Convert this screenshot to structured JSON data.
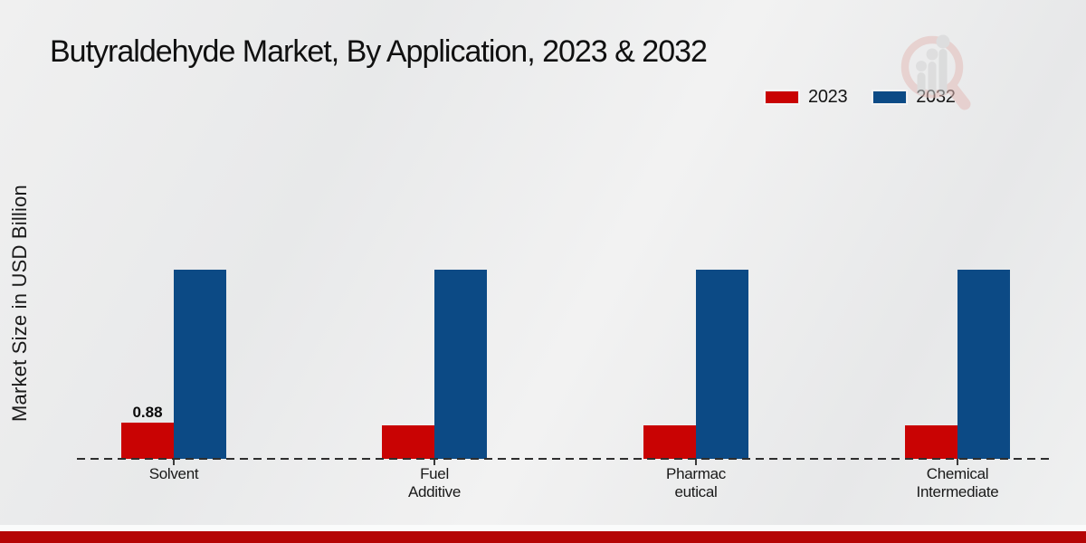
{
  "header": {
    "title": "Butyraldehyde Market, By Application, 2023 & 2032"
  },
  "axes": {
    "y_label": "Market Size in USD Billion"
  },
  "legend": {
    "items": [
      {
        "label": "2023",
        "color": "#c90303"
      },
      {
        "label": "2032",
        "color": "#0c4a85"
      }
    ]
  },
  "icons": {
    "watermark": "magnifier-growth-chart-icon"
  },
  "colors": {
    "series_2023": "#c90303",
    "series_2032": "#0c4a85",
    "axis_dash": "#2e2e2e",
    "footer_bar": "#b50505"
  },
  "chart_data": {
    "type": "bar",
    "title": "Butyraldehyde Market, By Application, 2023 & 2032",
    "xlabel": "",
    "ylabel": "Market Size in USD Billion",
    "categories": [
      "Solvent",
      "Fuel Additive",
      "Pharmaceutical",
      "Chemical Intermediate"
    ],
    "category_label_lines": [
      [
        "Solvent"
      ],
      [
        "Fuel",
        "Additive"
      ],
      [
        "Pharmac",
        "eutical"
      ],
      [
        "Chemical",
        "Intermediate"
      ]
    ],
    "series": [
      {
        "name": "2023",
        "color": "#c90303",
        "values": [
          0.88,
          0.81,
          0.81,
          0.81
        ]
      },
      {
        "name": "2032",
        "color": "#0c4a85",
        "values": [
          4.6,
          4.6,
          4.6,
          4.6
        ]
      }
    ],
    "data_labels": [
      {
        "series_index": 0,
        "category_index": 0,
        "text": "0.88"
      }
    ],
    "ylim": [
      0,
      5.5
    ],
    "grid": false,
    "legend_position": "top-right",
    "baseline_style": "dashed"
  }
}
